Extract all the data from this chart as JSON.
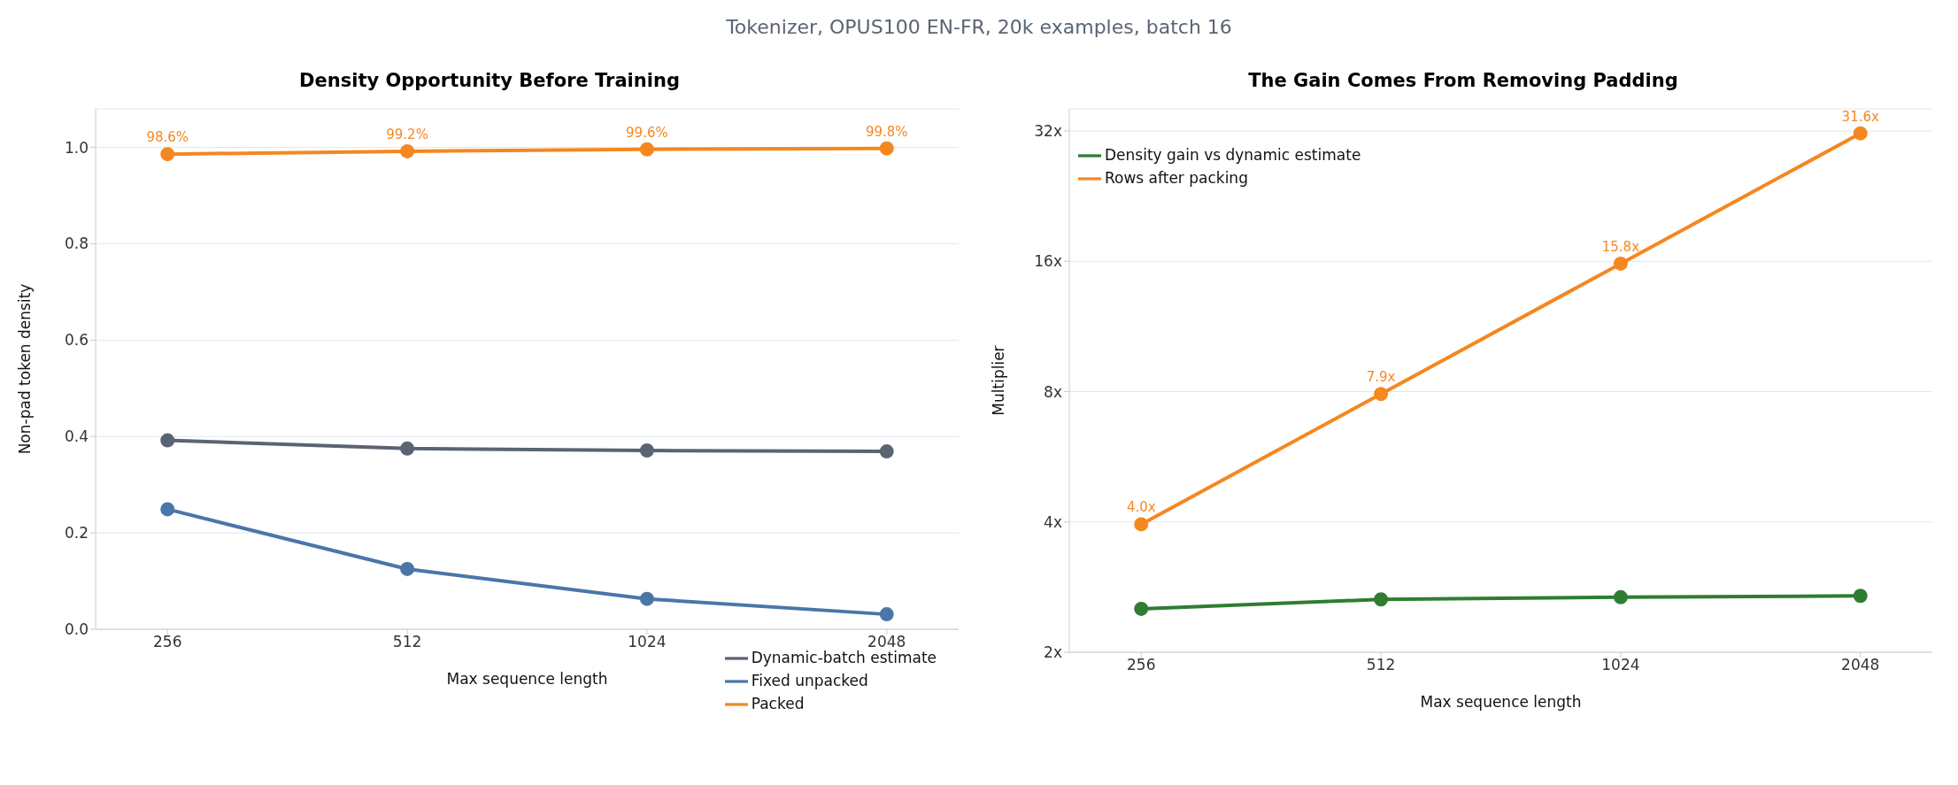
{
  "chart_data": [
    {
      "type": "line",
      "title": "Density Opportunity Before Training",
      "subtitle": "Tokenizer, OPUS100 EN-FR, 20k examples, batch 16",
      "xlabel": "Max sequence length",
      "ylabel": "Non-pad token density",
      "categories": [
        "256",
        "512",
        "1024",
        "2048"
      ],
      "ylim": [
        0,
        1.08
      ],
      "yticks": [
        {
          "value": 0,
          "label": "0.0"
        },
        0.2,
        0.4,
        0.6,
        0.8,
        {
          "value": 1,
          "label": "1.0"
        }
      ],
      "grid": "y",
      "legend": "bottom right",
      "marker": "circle",
      "series": [
        {
          "name": "Fixed unpacked",
          "color": "#4a76a8",
          "values": [
            0.249,
            0.125,
            0.063,
            0.031
          ]
        },
        {
          "name": "Dynamic-batch estimate",
          "color": "#5a6472",
          "values": [
            0.392,
            0.375,
            0.371,
            0.369
          ]
        },
        {
          "name": "Packed",
          "color": "#f5871f",
          "values": [
            0.986,
            0.992,
            0.996,
            0.998
          ],
          "value_labels": [
            "98.6%",
            "99.2%",
            "99.6%",
            "99.8%"
          ]
        }
      ]
    },
    {
      "type": "line",
      "title": "The Gain Comes From Removing Padding",
      "xlabel": "Max sequence length",
      "ylabel": "Multiplier",
      "categories": [
        "256",
        "512",
        "1024",
        "2048"
      ],
      "log": "y",
      "ylim": [
        2,
        36
      ],
      "yticks": [
        {
          "value": 2,
          "label": "2x"
        },
        {
          "value": 4,
          "label": "4x"
        },
        {
          "value": 8,
          "label": "8x"
        },
        {
          "value": 16,
          "label": "16x"
        },
        {
          "value": 32,
          "label": "32x"
        }
      ],
      "grid": "y",
      "legend": "top left",
      "marker": "circle",
      "series": [
        {
          "name": "Rows after packing",
          "color": "#f5871f",
          "values": [
            3.95,
            7.9,
            15.8,
            31.6
          ],
          "value_labels": [
            "4.0x",
            "7.9x",
            "15.8x",
            "31.6x"
          ]
        },
        {
          "name": "Density gain vs dynamic estimate",
          "color": "#2e7d32",
          "values": [
            2.52,
            2.65,
            2.68,
            2.7
          ]
        }
      ]
    }
  ]
}
